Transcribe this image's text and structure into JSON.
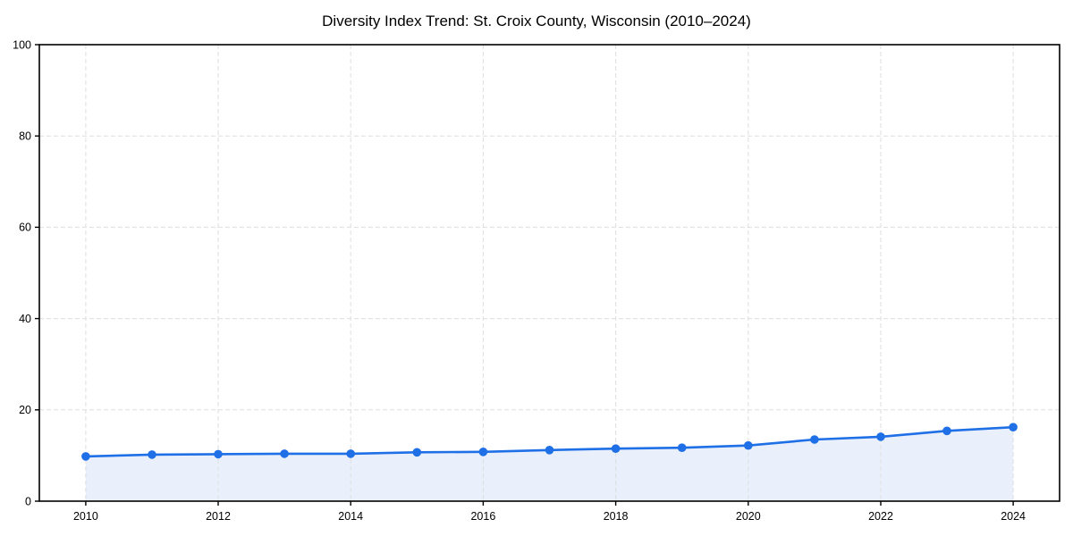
{
  "title": "Diversity Index Trend: St. Croix County, Wisconsin (2010–2024)",
  "chart_data": {
    "type": "line",
    "title": "Diversity Index Trend: St. Croix County, Wisconsin (2010–2024)",
    "x": [
      2010,
      2011,
      2012,
      2013,
      2014,
      2015,
      2016,
      2017,
      2018,
      2019,
      2020,
      2021,
      2022,
      2023,
      2024
    ],
    "series": [
      {
        "name": "Diversity Index",
        "values": [
          9.8,
          10.2,
          10.3,
          10.4,
          10.4,
          10.7,
          10.8,
          11.2,
          11.5,
          11.7,
          12.2,
          13.5,
          14.1,
          15.4,
          16.2
        ]
      }
    ],
    "xlabel": "",
    "ylabel": "",
    "xlim": [
      2009.3,
      2024.7
    ],
    "ylim": [
      0,
      100
    ],
    "xticks": [
      2010,
      2012,
      2014,
      2016,
      2018,
      2020,
      2022,
      2024
    ],
    "yticks": [
      0,
      20,
      40,
      60,
      80,
      100
    ],
    "grid": true,
    "grid_style": "dashed",
    "legend_position": "none",
    "marker": "circle",
    "area_fill": true
  },
  "style": {
    "line_color": "#1f6fe6",
    "marker_color": "#1f6fe6",
    "area_color": "#e9f0fb",
    "grid_color": "#dedede",
    "axis_color": "#000000",
    "text_color": "#000000",
    "background": "#ffffff"
  }
}
